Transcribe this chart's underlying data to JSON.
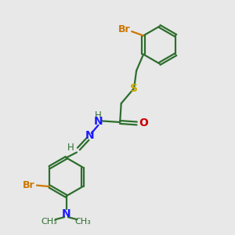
{
  "bg_color": "#e8e8e8",
  "bond_color": "#2d6e2d",
  "N_color": "#1a1aff",
  "O_color": "#cc0000",
  "S_color": "#ccaa00",
  "Br_color": "#cc7700",
  "line_width": 1.6,
  "figsize": [
    3.0,
    3.0
  ],
  "dpi": 100,
  "xlim": [
    0,
    10
  ],
  "ylim": [
    0,
    10
  ]
}
